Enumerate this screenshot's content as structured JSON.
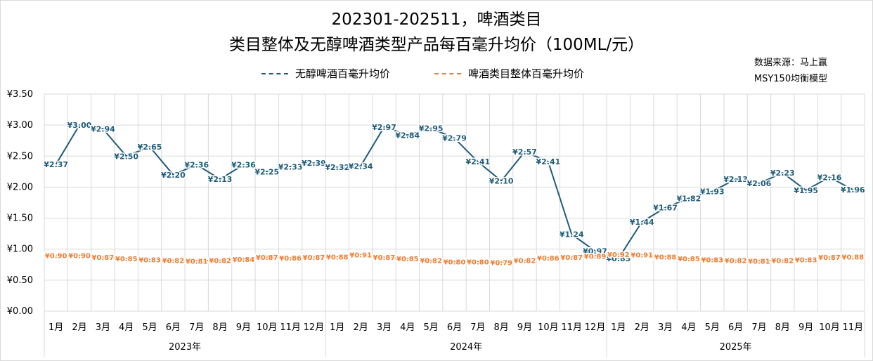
{
  "title_line1": "202301-202511，啤酒类目",
  "title_line2": "类目整体及无醇啤酒类型产品每百毫升均价（100ML/元）",
  "source_line1": "数据来源：马上赢",
  "source_line2": "MSY150均衡模型",
  "colors": {
    "series1": "#1f5c7a",
    "series2": "#ed7d31",
    "grid": "#d9d9d9",
    "axis_text": "#000000"
  },
  "chart_data": {
    "type": "line",
    "ylim": [
      0,
      3.5
    ],
    "yticks": [
      "¥0.00",
      "¥0.50",
      "¥1.00",
      "¥1.50",
      "¥2.00",
      "¥2.50",
      "¥3.00",
      "¥3.50"
    ],
    "ytick_values": [
      0,
      0.5,
      1,
      1.5,
      2,
      2.5,
      3,
      3.5
    ],
    "categories": [
      "1月",
      "2月",
      "3月",
      "4月",
      "5月",
      "6月",
      "7月",
      "8月",
      "9月",
      "10月",
      "11月",
      "12月",
      "1月",
      "2月",
      "3月",
      "4月",
      "5月",
      "6月",
      "7月",
      "8月",
      "9月",
      "10月",
      "11月",
      "12月",
      "1月",
      "2月",
      "3月",
      "4月",
      "5月",
      "6月",
      "7月",
      "8月",
      "9月",
      "10月",
      "11月"
    ],
    "groups": [
      {
        "label": "2023年",
        "count": 12
      },
      {
        "label": "2024年",
        "count": 12
      },
      {
        "label": "2025年",
        "count": 11
      }
    ],
    "series": [
      {
        "name": "无醇啤酒百毫升均价",
        "values": [
          2.37,
          3.0,
          2.94,
          2.5,
          2.65,
          2.2,
          2.36,
          2.13,
          2.36,
          2.25,
          2.33,
          2.39,
          2.32,
          2.34,
          2.97,
          2.84,
          2.95,
          2.79,
          2.41,
          2.1,
          2.57,
          2.41,
          1.24,
          0.97,
          0.85,
          1.44,
          1.67,
          1.82,
          1.93,
          2.13,
          2.06,
          2.23,
          1.95,
          2.16,
          1.96
        ],
        "labels": [
          "¥2.37",
          "¥3.00",
          "¥2.94",
          "¥2.50",
          "¥2.65",
          "¥2.20",
          "¥2.36",
          "¥2.13",
          "¥2.36",
          "¥2.25",
          "¥2.33",
          "¥2.39",
          "¥2.32",
          "¥2.34",
          "¥2.97",
          "¥2.84",
          "¥2.95",
          "¥2.79",
          "¥2.41",
          "¥2.10",
          "¥2.57",
          "¥2.41",
          "¥1.24",
          "¥0.97",
          "¥0.85",
          "¥1.44",
          "¥1.67",
          "¥1.82",
          "¥1.93",
          "¥2.13",
          "¥2.06",
          "¥2.23",
          "¥1.95",
          "¥2.16",
          "¥1.96"
        ]
      },
      {
        "name": "啤酒类目整体百毫升均价",
        "values": [
          0.9,
          0.9,
          0.87,
          0.85,
          0.83,
          0.82,
          0.81,
          0.82,
          0.84,
          0.87,
          0.86,
          0.87,
          0.88,
          0.91,
          0.87,
          0.85,
          0.82,
          0.8,
          0.8,
          0.79,
          0.82,
          0.86,
          0.87,
          0.89,
          0.92,
          0.91,
          0.88,
          0.85,
          0.83,
          0.82,
          0.81,
          0.82,
          0.83,
          0.87,
          0.88
        ],
        "labels": [
          "¥0.90",
          "¥0.90",
          "¥0.87",
          "¥0.85",
          "¥0.83",
          "¥0.82",
          "¥0.81",
          "¥0.82",
          "¥0.84",
          "¥0.87",
          "¥0.86",
          "¥0.87",
          "¥0.88",
          "¥0.91",
          "¥0.87",
          "¥0.85",
          "¥0.82",
          "¥0.80",
          "¥0.80",
          "¥0.79",
          "¥0.82",
          "¥0.86",
          "¥0.87",
          "¥0.89",
          "¥0.92",
          "¥0.91",
          "¥0.88",
          "¥0.85",
          "¥0.83",
          "¥0.82",
          "¥0.81",
          "¥0.82",
          "¥0.83",
          "¥0.87",
          "¥0.88"
        ]
      }
    ]
  }
}
